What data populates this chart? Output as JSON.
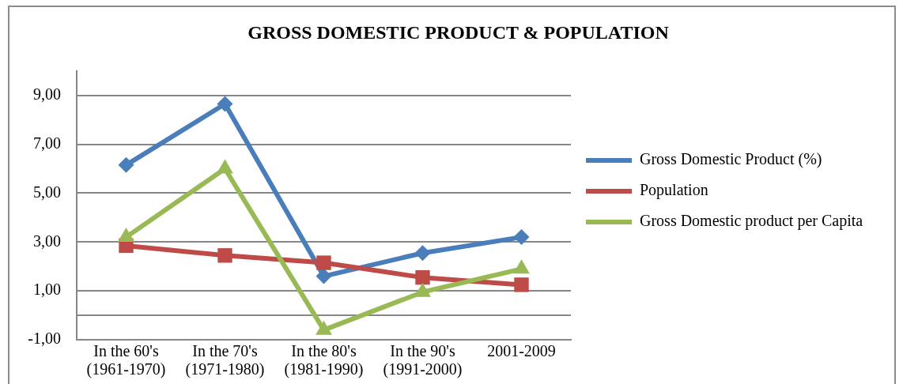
{
  "chart_data": {
    "type": "line",
    "title": "GROSS DOMESTIC PRODUCT & POPULATION",
    "categories": [
      "In the 60's (1961-1970)",
      "In the 70's (1971-1980)",
      "In the 80's (1981-1990)",
      "In the 90's (1991-2000)",
      "2001-2009"
    ],
    "series": [
      {
        "name": "Gross Domestic Product (%)",
        "color": "#4a7ebb",
        "marker": "diamond",
        "values": [
          6.15,
          8.65,
          1.6,
          2.55,
          3.2
        ]
      },
      {
        "name": "Population",
        "color": "#be4b48",
        "marker": "square",
        "values": [
          2.85,
          2.45,
          2.15,
          1.55,
          1.25
        ]
      },
      {
        "name": "Gross Domestic product per Capita",
        "color": "#98b954",
        "marker": "triangle",
        "values": [
          3.2,
          6.0,
          -0.6,
          0.95,
          1.9
        ]
      }
    ],
    "ylim": [
      -1,
      10
    ],
    "yticks": [
      {
        "value": -1,
        "label": "-1,00"
      },
      {
        "value": 1,
        "label": "1,00"
      },
      {
        "value": 3,
        "label": "3,00"
      },
      {
        "value": 5,
        "label": "5,00"
      },
      {
        "value": 7,
        "label": "7,00"
      },
      {
        "value": 9,
        "label": "9,00"
      }
    ],
    "grid": "y",
    "legend": "right",
    "line_style": "solid",
    "ref_lines": [
      {
        "axis": "y",
        "value": 0,
        "color": "#868686"
      }
    ]
  }
}
